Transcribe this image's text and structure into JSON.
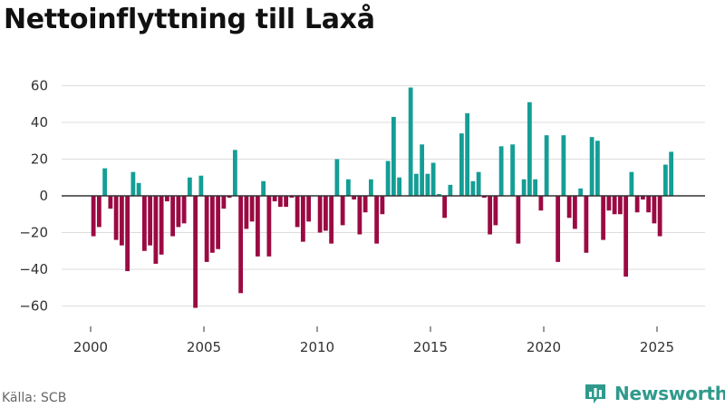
{
  "colors": {
    "positive": "#149e96",
    "negative": "#9b0a43",
    "grid": "#dddddd",
    "zero": "#333333",
    "brand": "#2f9a8c"
  },
  "source": "Källa: SCB",
  "brand": {
    "name": "Newsworthy",
    "icon": "bar-chart-logo-icon"
  },
  "chart_data": {
    "type": "bar",
    "title": "Nettoinflyttning till Laxå",
    "xlabel": "",
    "ylabel": "",
    "ylim": [
      -70,
      70
    ],
    "y_ticks": [
      -60,
      -40,
      -20,
      0,
      20,
      40,
      60
    ],
    "y_tick_labels": [
      "−60",
      "−40",
      "−20",
      "0",
      "20",
      "40",
      "60"
    ],
    "x_ticks": [
      2000,
      2005,
      2010,
      2015,
      2020,
      2025
    ],
    "x_tick_labels": [
      "2000",
      "2005",
      "2010",
      "2015",
      "2020",
      "2025"
    ],
    "frequency": "quarterly",
    "start": "2000 Q1",
    "values": [
      -22,
      -17,
      15,
      -7,
      -24,
      -27,
      -41,
      13,
      7,
      -30,
      -27,
      -37,
      -32,
      -3,
      -22,
      -17,
      -15,
      10,
      -61,
      11,
      -36,
      -31,
      -29,
      -7,
      -1,
      25,
      -53,
      -18,
      -14,
      -33,
      8,
      -33,
      -3,
      -6,
      -6,
      -1,
      -17,
      -25,
      -14,
      0,
      -20,
      -19,
      -26,
      20,
      -16,
      9,
      -2,
      -21,
      -9,
      9,
      -26,
      -10,
      19,
      43,
      10,
      0,
      59,
      12,
      28,
      12,
      18,
      1,
      -12,
      6,
      0,
      34,
      45,
      8,
      13,
      -1,
      -21,
      -16,
      27,
      0,
      28,
      -26,
      9,
      51,
      9,
      -8,
      33,
      0,
      -36,
      33,
      -12,
      -18,
      4,
      -31,
      32,
      30,
      -24,
      -8,
      -10,
      -10,
      -44,
      13,
      -9,
      -2,
      -9,
      -15,
      -22,
      17,
      24
    ]
  }
}
